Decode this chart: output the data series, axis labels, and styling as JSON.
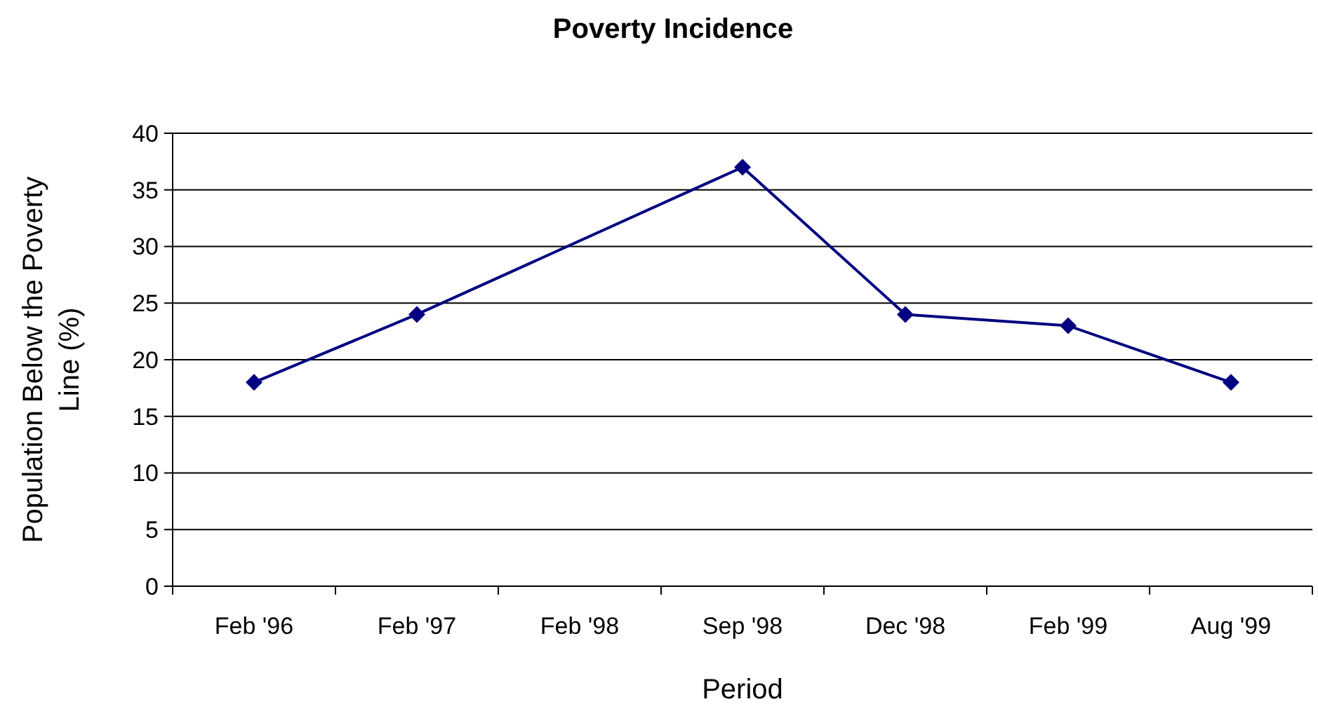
{
  "chart_data": {
    "type": "line",
    "title": "Poverty Incidence",
    "xlabel": "Period",
    "ylabel": "Population Below the Poverty Line (%)",
    "categories": [
      "Feb '96",
      "Feb '97",
      "Feb '98",
      "Sep '98",
      "Dec '98",
      "Feb '99",
      "Aug '99"
    ],
    "series": [
      {
        "color": "#000080",
        "values": [
          18,
          24,
          null,
          37,
          24,
          23,
          18
        ]
      }
    ],
    "ylim": [
      0,
      40
    ],
    "yticks": [
      0,
      5,
      10,
      15,
      20,
      25,
      30,
      35,
      40
    ],
    "grid": "y",
    "marker": "diamond"
  }
}
